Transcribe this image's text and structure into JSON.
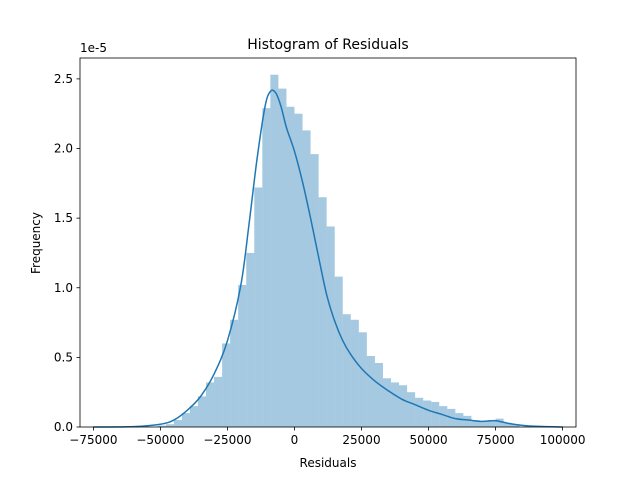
{
  "chart_data": {
    "type": "bar",
    "title": "Histogram of Residuals",
    "xlabel": "Residuals",
    "ylabel": "Frequency",
    "y_offset_label": "1e-5",
    "y_scale_exponent": -5,
    "xlim": [
      -80000,
      105000
    ],
    "ylim": [
      0,
      2.65
    ],
    "x_ticks": [
      -75000,
      -50000,
      -25000,
      0,
      25000,
      50000,
      75000,
      100000
    ],
    "x_tick_labels": [
      "−75000",
      "−50000",
      "−25000",
      "0",
      "25000",
      "50000",
      "75000",
      "100000"
    ],
    "y_ticks": [
      0.0,
      0.5,
      1.0,
      1.5,
      2.0,
      2.5
    ],
    "y_tick_labels": [
      "0.0",
      "0.5",
      "1.0",
      "1.5",
      "2.0",
      "2.5"
    ],
    "grid": false,
    "bin_width": 3000,
    "bins": [
      {
        "x0": -51000,
        "value": 0.01
      },
      {
        "x0": -48000,
        "value": 0.02
      },
      {
        "x0": -45000,
        "value": 0.05
      },
      {
        "x0": -42000,
        "value": 0.1
      },
      {
        "x0": -39000,
        "value": 0.15
      },
      {
        "x0": -36000,
        "value": 0.22
      },
      {
        "x0": -33000,
        "value": 0.32
      },
      {
        "x0": -30000,
        "value": 0.36
      },
      {
        "x0": -27000,
        "value": 0.6
      },
      {
        "x0": -24000,
        "value": 0.77
      },
      {
        "x0": -21000,
        "value": 1.02
      },
      {
        "x0": -18000,
        "value": 1.25
      },
      {
        "x0": -15000,
        "value": 1.72
      },
      {
        "x0": -12000,
        "value": 2.29
      },
      {
        "x0": -9000,
        "value": 2.53
      },
      {
        "x0": -6000,
        "value": 2.43
      },
      {
        "x0": -3000,
        "value": 2.3
      },
      {
        "x0": 0,
        "value": 2.25
      },
      {
        "x0": 3000,
        "value": 2.13
      },
      {
        "x0": 6000,
        "value": 1.96
      },
      {
        "x0": 9000,
        "value": 1.65
      },
      {
        "x0": 12000,
        "value": 1.44
      },
      {
        "x0": 15000,
        "value": 1.08
      },
      {
        "x0": 18000,
        "value": 0.81
      },
      {
        "x0": 21000,
        "value": 0.77
      },
      {
        "x0": 24000,
        "value": 0.68
      },
      {
        "x0": 27000,
        "value": 0.51
      },
      {
        "x0": 30000,
        "value": 0.46
      },
      {
        "x0": 33000,
        "value": 0.35
      },
      {
        "x0": 36000,
        "value": 0.32
      },
      {
        "x0": 39000,
        "value": 0.3
      },
      {
        "x0": 42000,
        "value": 0.25
      },
      {
        "x0": 45000,
        "value": 0.21
      },
      {
        "x0": 48000,
        "value": 0.19
      },
      {
        "x0": 51000,
        "value": 0.18
      },
      {
        "x0": 54000,
        "value": 0.15
      },
      {
        "x0": 57000,
        "value": 0.13
      },
      {
        "x0": 60000,
        "value": 0.1
      },
      {
        "x0": 63000,
        "value": 0.08
      },
      {
        "x0": 66000,
        "value": 0.05
      },
      {
        "x0": 69000,
        "value": 0.04
      },
      {
        "x0": 72000,
        "value": 0.05
      },
      {
        "x0": 75000,
        "value": 0.06
      },
      {
        "x0": 78000,
        "value": 0.03
      },
      {
        "x0": 81000,
        "value": 0.02
      }
    ],
    "kde": {
      "x": [
        -75000,
        -60000,
        -50000,
        -45000,
        -40000,
        -35000,
        -30000,
        -25000,
        -20000,
        -17000,
        -14000,
        -11000,
        -9000,
        -7000,
        -5000,
        -3000,
        0,
        3000,
        6000,
        9000,
        12000,
        15000,
        18000,
        21000,
        25000,
        30000,
        35000,
        40000,
        45000,
        50000,
        55000,
        60000,
        65000,
        70000,
        75000,
        80000,
        85000,
        90000,
        100000
      ],
      "y": [
        0.0,
        0.003,
        0.02,
        0.05,
        0.12,
        0.22,
        0.38,
        0.62,
        1.02,
        1.45,
        1.92,
        2.3,
        2.41,
        2.4,
        2.3,
        2.15,
        1.98,
        1.76,
        1.5,
        1.22,
        0.95,
        0.76,
        0.62,
        0.52,
        0.42,
        0.33,
        0.26,
        0.2,
        0.16,
        0.12,
        0.09,
        0.06,
        0.05,
        0.04,
        0.045,
        0.025,
        0.012,
        0.005,
        0.0
      ]
    },
    "colors": {
      "bar_fill": "#1f77b4",
      "bar_opacity": 0.4,
      "kde_line": "#1f77b4"
    }
  }
}
